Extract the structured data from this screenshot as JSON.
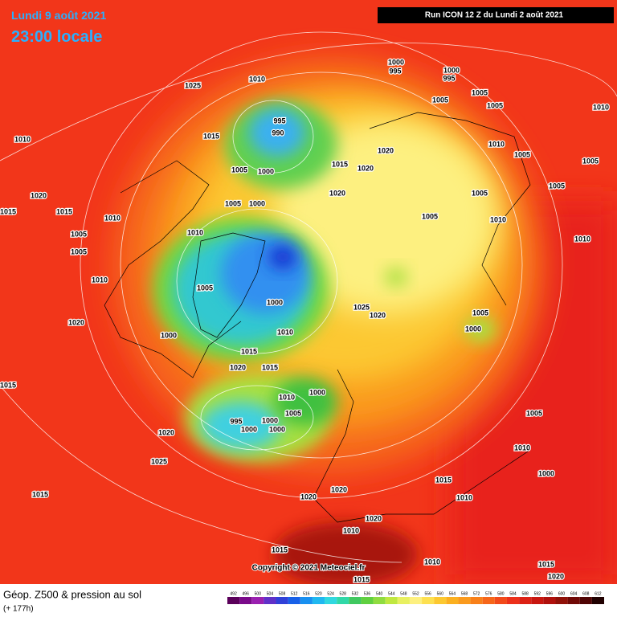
{
  "header": {
    "date": "Lundi 9 août 2021",
    "time": "23:00 locale",
    "run": "Run ICON 12 Z du Lundi 2 août 2021"
  },
  "footer": {
    "title": "Géop. Z500 & pression au sol",
    "lead": "(+ 177h)",
    "copyright": "Copyright © 2021 Meteociel.fr"
  },
  "colorbar": {
    "ticks": [
      492,
      496,
      500,
      504,
      508,
      512,
      516,
      520,
      524,
      528,
      532,
      536,
      540,
      544,
      548,
      552,
      556,
      560,
      564,
      568,
      572,
      576,
      580,
      584,
      588,
      592,
      596,
      600,
      604,
      608,
      612
    ]
  },
  "isobar_labels": [
    1010,
    1025,
    1000,
    995,
    1000,
    995,
    1005,
    1005,
    1005,
    1010,
    995,
    990,
    1015,
    1010,
    1020,
    1015,
    1020,
    1010,
    1005,
    1005,
    1005,
    1000,
    1005,
    1000,
    1020,
    1005,
    1005,
    1010,
    1005,
    1020,
    1015,
    1015,
    1010,
    1005,
    1010,
    1005,
    1010,
    1010,
    1005,
    1000,
    1025,
    1020,
    1005,
    1000,
    1020,
    1000,
    1010,
    1015,
    1020,
    1015,
    1015,
    1010,
    1000,
    1005,
    1000,
    995,
    1000,
    1000,
    1020,
    1025,
    1015,
    1020,
    1020,
    1010,
    1020,
    1015,
    1015,
    1010,
    1015,
    1020,
    1000,
    1005,
    1010,
    1015,
    1010
  ]
}
